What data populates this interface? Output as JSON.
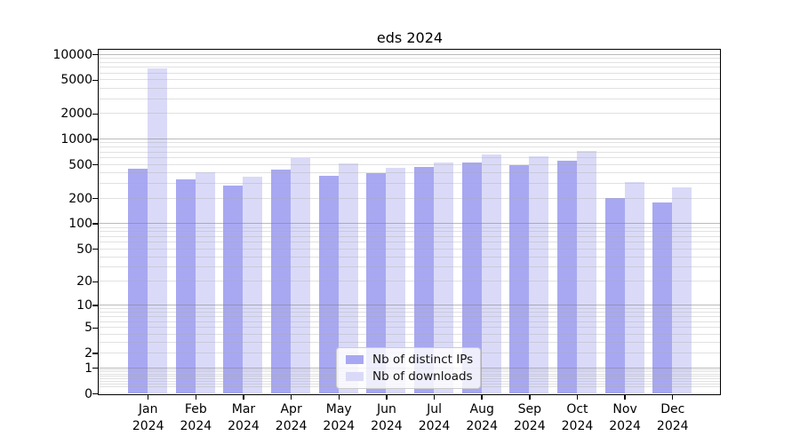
{
  "title": "eds 2024",
  "chart_data": {
    "type": "bar",
    "title": "eds 2024",
    "y_scale": "symlog",
    "categories": [
      "Jan",
      "Feb",
      "Mar",
      "Apr",
      "May",
      "Jun",
      "Jul",
      "Aug",
      "Sep",
      "Oct",
      "Nov",
      "Dec"
    ],
    "year": "2024",
    "series": [
      {
        "name": "Nb of distinct IPs",
        "color": "#a8a8f2",
        "values": [
          450,
          330,
          280,
          440,
          370,
          400,
          470,
          530,
          490,
          550,
          200,
          180
        ]
      },
      {
        "name": "Nb of downloads",
        "color": "#dadaf8",
        "values": [
          6800,
          410,
          360,
          600,
          510,
          460,
          530,
          650,
          620,
          720,
          310,
          270
        ]
      }
    ],
    "y_ticks": [
      0,
      1,
      2,
      5,
      10,
      20,
      50,
      100,
      200,
      500,
      1000,
      2000,
      5000,
      10000
    ],
    "ylim": [
      0,
      11300
    ],
    "grid": true,
    "legend_position": "bottom-center"
  },
  "colors": {
    "spine": "#000000",
    "grid_major": "#c8c8c8",
    "grid_minor": "#e9e9e9",
    "legend_border": "#cbcbcb"
  }
}
